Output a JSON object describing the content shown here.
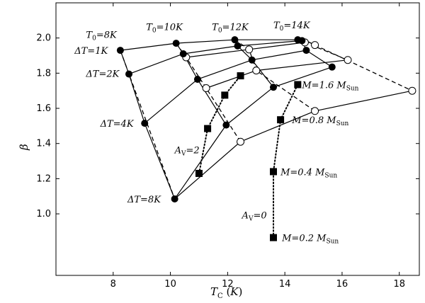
{
  "chart_data": {
    "type": "scatter",
    "title": "",
    "xlabel": "T_C (K)",
    "ylabel": "β",
    "xlim": [
      6.0,
      18.7
    ],
    "ylim": [
      0.65,
      2.2
    ],
    "x_ticks": [
      8,
      10,
      12,
      14,
      16,
      18
    ],
    "y_ticks": [
      1.0,
      1.2,
      1.4,
      1.6,
      1.8,
      2.0
    ],
    "grid": false,
    "solid_lines": [
      {
        "name": "ΔT=1K",
        "points": [
          [
            8.25,
            1.93
          ],
          [
            10.2,
            1.97
          ],
          [
            12.25,
            1.99
          ],
          [
            14.45,
            1.99
          ]
        ]
      },
      {
        "name": "ΔT=2K",
        "points": [
          [
            8.55,
            1.795
          ],
          [
            10.45,
            1.91
          ],
          [
            12.35,
            1.955
          ],
          [
            14.6,
            1.985
          ]
        ]
      },
      {
        "name": "ΔT=4K",
        "points": [
          [
            9.1,
            1.515
          ],
          [
            10.95,
            1.765
          ],
          [
            12.85,
            1.875
          ],
          [
            14.75,
            1.93
          ]
        ]
      },
      {
        "name": "ΔT=8K",
        "points": [
          [
            10.15,
            1.085
          ],
          [
            11.95,
            1.505
          ],
          [
            13.6,
            1.72
          ],
          [
            15.65,
            1.835
          ]
        ]
      },
      {
        "name": "T0=8K",
        "points": [
          [
            8.25,
            1.93
          ],
          [
            8.55,
            1.795
          ],
          [
            9.1,
            1.515
          ],
          [
            10.15,
            1.085
          ]
        ]
      },
      {
        "name": "T0=10K",
        "points": [
          [
            10.2,
            1.97
          ],
          [
            10.45,
            1.91
          ],
          [
            10.95,
            1.765
          ],
          [
            11.95,
            1.505
          ]
        ]
      },
      {
        "name": "T0=12K",
        "points": [
          [
            12.25,
            1.99
          ],
          [
            12.35,
            1.955
          ],
          [
            12.85,
            1.875
          ],
          [
            13.6,
            1.72
          ]
        ]
      },
      {
        "name": "T0=14K",
        "points": [
          [
            14.45,
            1.99
          ],
          [
            14.6,
            1.985
          ],
          [
            14.75,
            1.93
          ],
          [
            15.65,
            1.835
          ]
        ]
      },
      {
        "name": "open-1",
        "points": [
          [
            14.6,
            1.995
          ],
          [
            15.05,
            1.96
          ]
        ]
      },
      {
        "name": "open-2",
        "points": [
          [
            10.55,
            1.89
          ],
          [
            12.75,
            1.935
          ],
          [
            14.7,
            1.975
          ]
        ]
      },
      {
        "name": "open-3",
        "points": [
          [
            11.25,
            1.715
          ],
          [
            13.0,
            1.815
          ],
          [
            16.2,
            1.875
          ]
        ]
      },
      {
        "name": "open-4",
        "points": [
          [
            10.15,
            1.085
          ],
          [
            12.45,
            1.41
          ],
          [
            15.05,
            1.585
          ],
          [
            18.45,
            1.7
          ]
        ]
      }
    ],
    "dashed_lines": [
      {
        "points": [
          [
            8.25,
            1.93
          ],
          [
            10.15,
            1.085
          ]
        ]
      },
      {
        "points": [
          [
            10.2,
            1.97
          ],
          [
            10.55,
            1.89
          ],
          [
            11.25,
            1.715
          ],
          [
            12.45,
            1.41
          ]
        ]
      },
      {
        "points": [
          [
            12.25,
            1.99
          ],
          [
            12.75,
            1.935
          ],
          [
            13.0,
            1.815
          ],
          [
            15.05,
            1.585
          ]
        ]
      },
      {
        "points": [
          [
            14.45,
            1.99
          ],
          [
            14.7,
            1.975
          ],
          [
            16.2,
            1.875
          ]
        ]
      },
      {
        "points": [
          [
            14.6,
            1.995
          ],
          [
            15.05,
            1.96
          ],
          [
            18.45,
            1.7
          ]
        ]
      }
    ],
    "dotted_lines": [
      {
        "name": "A_V=2",
        "points": [
          [
            11.0,
            1.23
          ],
          [
            11.3,
            1.485
          ],
          [
            11.9,
            1.675
          ],
          [
            12.45,
            1.785
          ]
        ]
      },
      {
        "name": "A_V=0",
        "points": [
          [
            13.6,
            0.865
          ],
          [
            13.6,
            1.24
          ],
          [
            13.85,
            1.535
          ],
          [
            14.45,
            1.735
          ]
        ]
      }
    ],
    "filled_circles": [
      [
        8.25,
        1.93
      ],
      [
        10.2,
        1.97
      ],
      [
        12.25,
        1.99
      ],
      [
        14.45,
        1.99
      ],
      [
        8.55,
        1.795
      ],
      [
        10.45,
        1.91
      ],
      [
        12.35,
        1.955
      ],
      [
        14.6,
        1.985
      ],
      [
        9.1,
        1.515
      ],
      [
        10.95,
        1.765
      ],
      [
        12.85,
        1.875
      ],
      [
        14.75,
        1.93
      ],
      [
        10.15,
        1.085
      ],
      [
        11.95,
        1.505
      ],
      [
        13.6,
        1.72
      ],
      [
        15.65,
        1.835
      ]
    ],
    "open_circles": [
      [
        15.05,
        1.96
      ],
      [
        14.7,
        1.975
      ],
      [
        16.2,
        1.875
      ],
      [
        18.45,
        1.7
      ],
      [
        10.55,
        1.89
      ],
      [
        12.75,
        1.935
      ],
      [
        11.25,
        1.715
      ],
      [
        13.0,
        1.815
      ],
      [
        12.45,
        1.41
      ],
      [
        15.05,
        1.585
      ]
    ],
    "squares": [
      [
        11.0,
        1.23
      ],
      [
        11.3,
        1.485
      ],
      [
        11.9,
        1.675
      ],
      [
        12.45,
        1.785
      ],
      [
        13.6,
        0.865
      ],
      [
        13.6,
        1.24
      ],
      [
        13.85,
        1.535
      ],
      [
        14.45,
        1.735
      ]
    ],
    "annotations": [
      {
        "main": "T",
        "sub": "0",
        "rest": "=8K",
        "x": 7.05,
        "y": 2.0
      },
      {
        "main": "T",
        "sub": "0",
        "rest": "=10K",
        "x": 9.15,
        "y": 2.045
      },
      {
        "main": "T",
        "sub": "0",
        "rest": "=12K",
        "x": 11.45,
        "y": 2.045
      },
      {
        "main": "T",
        "sub": "0",
        "rest": "=14K",
        "x": 13.6,
        "y": 2.055
      },
      {
        "main": "ΔT=1K",
        "sub": "",
        "rest": "",
        "x": 6.65,
        "y": 1.91
      },
      {
        "main": "ΔT=2K",
        "sub": "",
        "rest": "",
        "x": 7.05,
        "y": 1.78
      },
      {
        "main": "ΔT=4K",
        "sub": "",
        "rest": "",
        "x": 7.55,
        "y": 1.495
      },
      {
        "main": "ΔT=8K",
        "sub": "",
        "rest": "",
        "x": 8.5,
        "y": 1.065
      },
      {
        "main": "A",
        "sub": "V",
        "rest": "=2",
        "x": 10.15,
        "y": 1.345
      },
      {
        "main": "A",
        "sub": "V",
        "rest": "=0",
        "x": 12.5,
        "y": 0.975
      },
      {
        "main": "M=1.6 M",
        "sub": "Sun",
        "rest": "",
        "x": 14.6,
        "y": 1.715
      },
      {
        "main": "M=0.8 M",
        "sub": "Sun",
        "rest": "",
        "x": 14.25,
        "y": 1.515
      },
      {
        "main": "M=0.4 M",
        "sub": "Sun",
        "rest": "",
        "x": 13.85,
        "y": 1.22
      },
      {
        "main": "M=0.2 M",
        "sub": "Sun",
        "rest": "",
        "x": 13.9,
        "y": 0.845
      }
    ]
  }
}
